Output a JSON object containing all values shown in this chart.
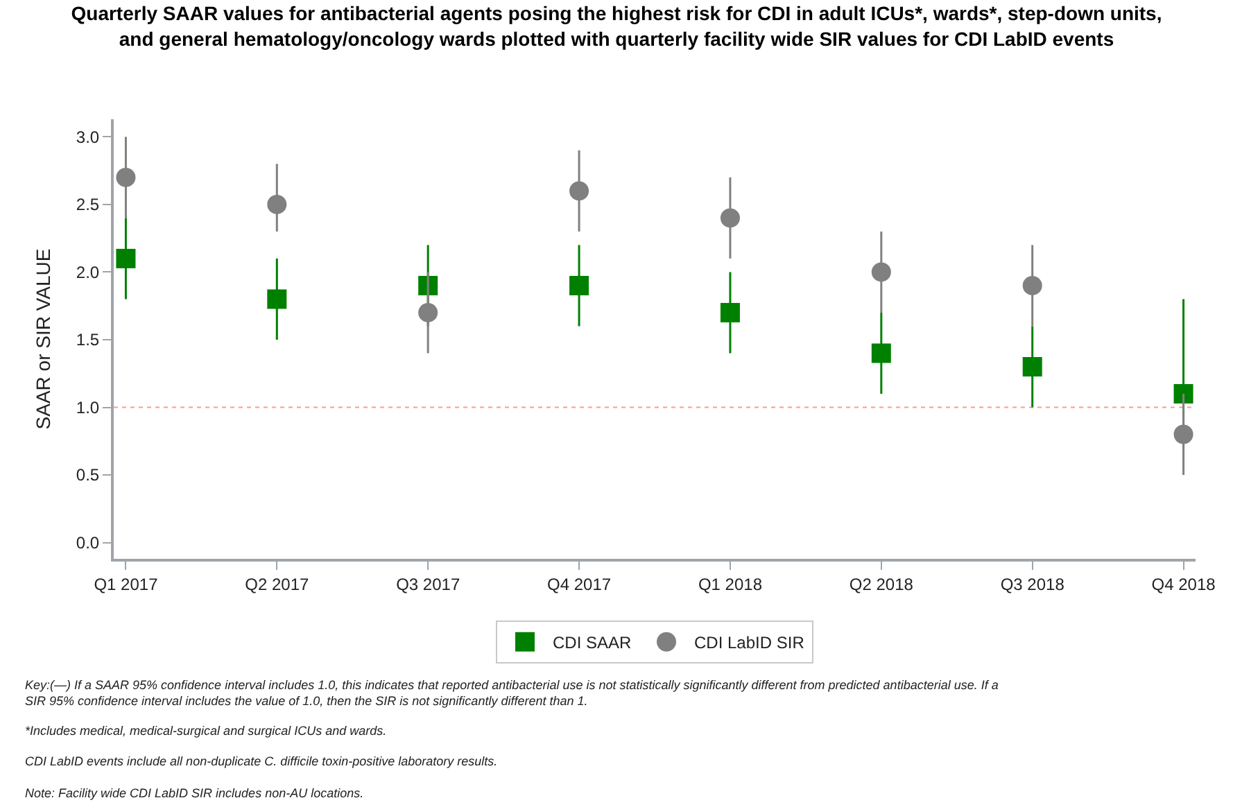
{
  "chart_data": {
    "type": "scatter",
    "title": "Quarterly SAAR values for antibacterial agents posing the highest risk for CDI in adult ICUs*, wards*, step-down units,\nand general hematology/oncology wards plotted with quarterly facility wide SIR values for CDI LabID events",
    "ylabel": "SAAR or SIR VALUE",
    "categories": [
      "Q1 2017",
      "Q2 2017",
      "Q3 2017",
      "Q4 2017",
      "Q1 2018",
      "Q2 2018",
      "Q3 2018",
      "Q4 2018"
    ],
    "series": [
      {
        "name": "CDI SAAR",
        "color": "#008000",
        "marker": "square",
        "values": [
          2.1,
          1.8,
          1.9,
          1.9,
          1.7,
          1.4,
          1.3,
          1.1
        ],
        "errors": [
          [
            1.8,
            2.4
          ],
          [
            1.5,
            2.1
          ],
          [
            1.6,
            2.2
          ],
          [
            1.6,
            2.2
          ],
          [
            1.4,
            2.0
          ],
          [
            1.1,
            1.7
          ],
          [
            1.0,
            1.6
          ],
          [
            0.7,
            1.8
          ]
        ]
      },
      {
        "name": "CDI LabID SIR",
        "color": "#808080",
        "marker": "circle",
        "values": [
          2.7,
          2.5,
          1.7,
          2.6,
          2.4,
          2.0,
          1.9,
          0.8
        ],
        "errors": [
          [
            2.4,
            3.0
          ],
          [
            2.3,
            2.8
          ],
          [
            1.4,
            2.0
          ],
          [
            2.3,
            2.9
          ],
          [
            2.1,
            2.7
          ],
          [
            1.7,
            2.3
          ],
          [
            1.6,
            2.2
          ],
          [
            0.5,
            1.1
          ]
        ]
      }
    ],
    "ylim": [
      -0.12,
      3.13
    ],
    "yticks": [
      {
        "value": 0,
        "label": "0.0"
      },
      {
        "value": 0.5,
        "label": "0.5"
      },
      {
        "value": 1,
        "label": "1.0"
      },
      {
        "value": 1.5,
        "label": "1.5"
      },
      {
        "value": 2,
        "label": "2.0"
      },
      {
        "value": 2.5,
        "label": "2.5"
      },
      {
        "value": 3,
        "label": "3.0"
      }
    ],
    "ref_lines": [
      {
        "axis": "y",
        "value": 1.0,
        "color": "#ff9999",
        "line_style": "dotted"
      }
    ],
    "grid": false,
    "legend": "bottom",
    "annotations": [
      "Key:(—) If a SAAR 95% confidence interval includes 1.0, this indicates that reported antibacterial use is not statistically significantly different from predicted antibacterial use. If a\nSIR 95% confidence interval includes the value of 1.0, then the SIR is not significantly different than 1.",
      "*Includes medical, medical-surgical and surgical ICUs and wards.",
      "CDI LabID events include all non-duplicate C. difficile toxin-positive laboratory results.",
      "Note: Facility wide CDI LabID SIR includes non-AU locations."
    ]
  }
}
